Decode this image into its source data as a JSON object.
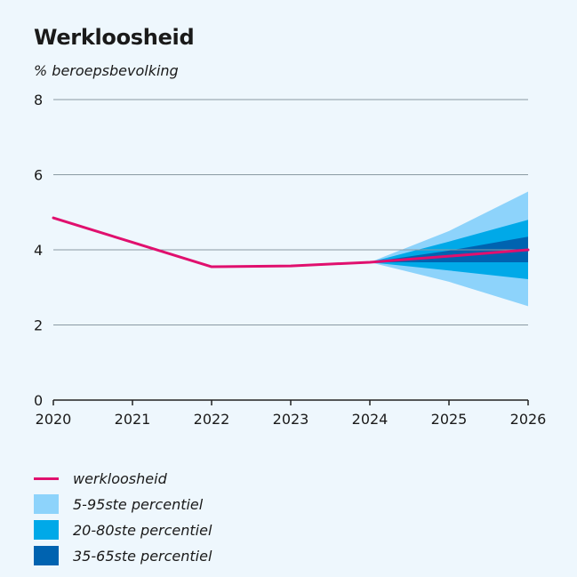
{
  "title": "Werkloosheid",
  "subtitle": "% beroepsbevolking",
  "colors": {
    "background": "#eef7fd",
    "line": "#e0106e",
    "band_5_95": "#8dd3fb",
    "band_20_80": "#00a9e8",
    "band_35_65": "#0063b0",
    "grid": "#8a9aa3",
    "axis": "#222222"
  },
  "legend": [
    {
      "label": "werkloosheid",
      "kind": "line",
      "color": "#e0106e"
    },
    {
      "label": "5-95ste percentiel",
      "kind": "box",
      "color": "#8dd3fb"
    },
    {
      "label": "20-80ste percentiel",
      "kind": "box",
      "color": "#00a9e8"
    },
    {
      "label": "35-65ste percentiel",
      "kind": "box",
      "color": "#0063b0"
    }
  ],
  "chart_data": {
    "type": "line",
    "title": "Werkloosheid",
    "ylabel": "% beroepsbevolking",
    "x": [
      2020,
      2021,
      2022,
      2023,
      2024,
      2025,
      2026
    ],
    "x_tick_labels": [
      "2020",
      "2021",
      "2022",
      "2023",
      "2024",
      "2025",
      "2026"
    ],
    "y_ticks": [
      0,
      2,
      4,
      6,
      8
    ],
    "y_tick_labels": [
      "0",
      "2",
      "4",
      "6",
      "8"
    ],
    "ylim": [
      0,
      8
    ],
    "xlim": [
      2020,
      2026
    ],
    "grid": "horizontal",
    "legend_position": "bottom",
    "series": [
      {
        "name": "werkloosheid",
        "x": [
          2020,
          2021,
          2022,
          2023,
          2024,
          2025,
          2026
        ],
        "values": [
          4.85,
          4.2,
          3.55,
          3.57,
          3.67,
          3.83,
          4.0
        ]
      }
    ],
    "bands": [
      {
        "name": "5-95ste percentiel",
        "x": [
          2024,
          2025,
          2026
        ],
        "lower": [
          3.67,
          3.15,
          2.5
        ],
        "upper": [
          3.67,
          4.5,
          5.55
        ]
      },
      {
        "name": "20-80ste percentiel",
        "x": [
          2024,
          2025,
          2026
        ],
        "lower": [
          3.67,
          3.45,
          3.22
        ],
        "upper": [
          3.67,
          4.22,
          4.8
        ]
      },
      {
        "name": "35-65ste percentiel",
        "x": [
          2024,
          2025,
          2026
        ],
        "lower": [
          3.67,
          3.67,
          3.67
        ],
        "upper": [
          3.67,
          3.98,
          4.35
        ]
      }
    ]
  }
}
